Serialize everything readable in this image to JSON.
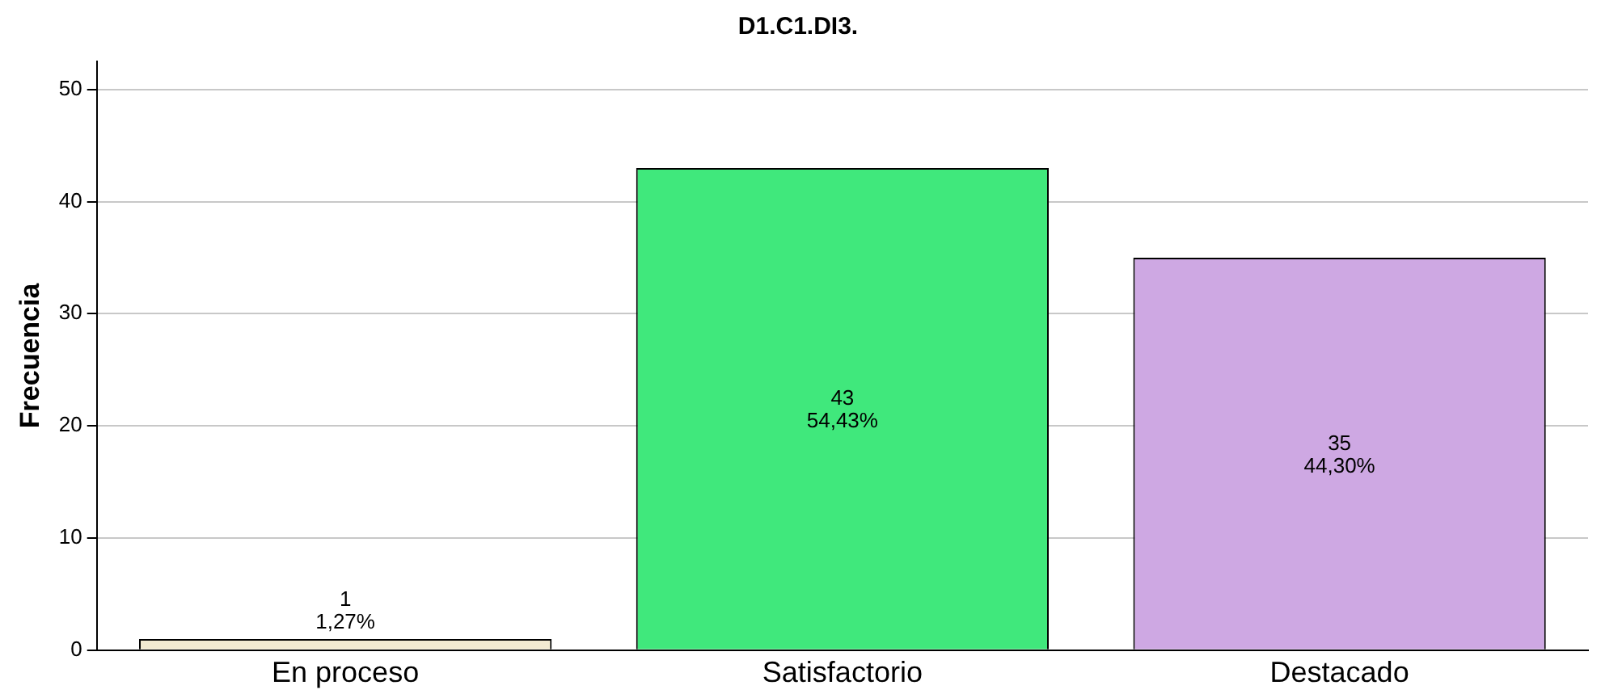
{
  "chart_data": {
    "type": "bar",
    "title": "D1.C1.DI3.",
    "ylabel": "Frecuencia",
    "categories": [
      "En proceso",
      "Satisfactorio",
      "Destacado"
    ],
    "values": [
      1,
      43,
      35
    ],
    "colors": [
      "#f2ead2",
      "#40e87c",
      "#cea8e3"
    ],
    "value_labels": [
      "1\n1,27%",
      "43\n54,43%",
      "35\n44,30%"
    ],
    "ylim": [
      0,
      52.5
    ],
    "yticks": [
      0,
      10,
      20,
      30,
      40,
      50
    ],
    "grid": "y",
    "legend": false
  }
}
